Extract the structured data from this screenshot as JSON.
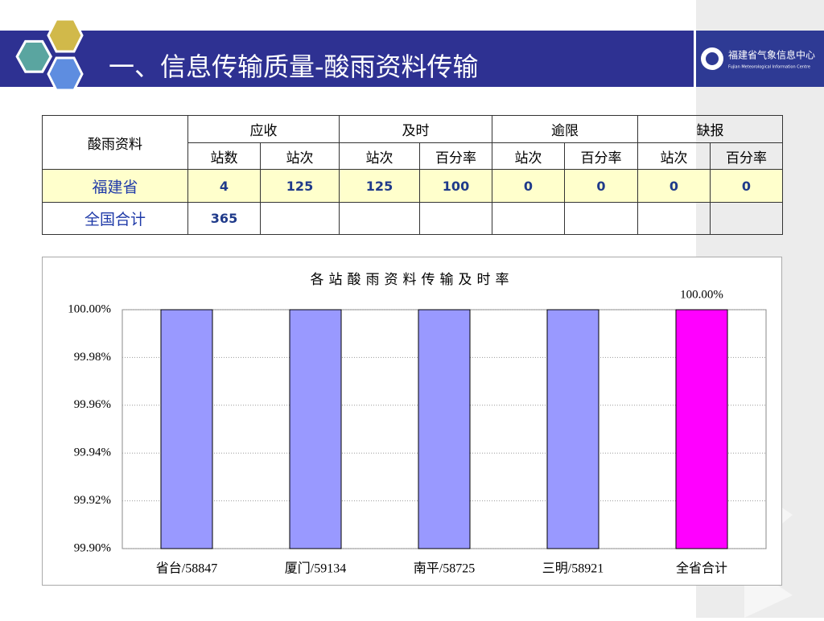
{
  "header": {
    "title": "一、信息传输质量-酸雨资料传输",
    "logo": "福建省气象信息中心",
    "logo_en": "Fujian Meteorological Information Centre"
  },
  "table": {
    "corner": "酸雨资料",
    "groups": [
      "应收",
      "及时",
      "逾限",
      "缺报"
    ],
    "subheaders": [
      "站数",
      "站次",
      "站次",
      "百分率",
      "站次",
      "百分率",
      "站次",
      "百分率"
    ],
    "rows": [
      {
        "label": "福建省",
        "cells": [
          4,
          125,
          125,
          100,
          0,
          0,
          0,
          0
        ]
      },
      {
        "label": "全国合计",
        "cells": [
          365
        ]
      }
    ]
  },
  "chart_data": {
    "type": "bar",
    "title": "各站酸雨资料传输及时率",
    "categories": [
      "省台/58847",
      "厦门/59134",
      "南平/58725",
      "三明/58921",
      "全省合计"
    ],
    "values": [
      100,
      100,
      100,
      100,
      100
    ],
    "value_labels": [
      null,
      null,
      null,
      null,
      "100.00%"
    ],
    "colors": [
      "#9999ff",
      "#9999ff",
      "#9999ff",
      "#9999ff",
      "#ff00ff"
    ],
    "ylim": [
      99.9,
      100
    ],
    "yticks": [
      {
        "value": 99.9,
        "label": "99.90%"
      },
      {
        "value": 99.92,
        "label": "99.92%"
      },
      {
        "value": 99.94,
        "label": "99.94%"
      },
      {
        "value": 99.96,
        "label": "99.96%"
      },
      {
        "value": 99.98,
        "label": "99.98%"
      },
      {
        "value": 100,
        "label": "100.00%"
      }
    ],
    "grid": true
  }
}
